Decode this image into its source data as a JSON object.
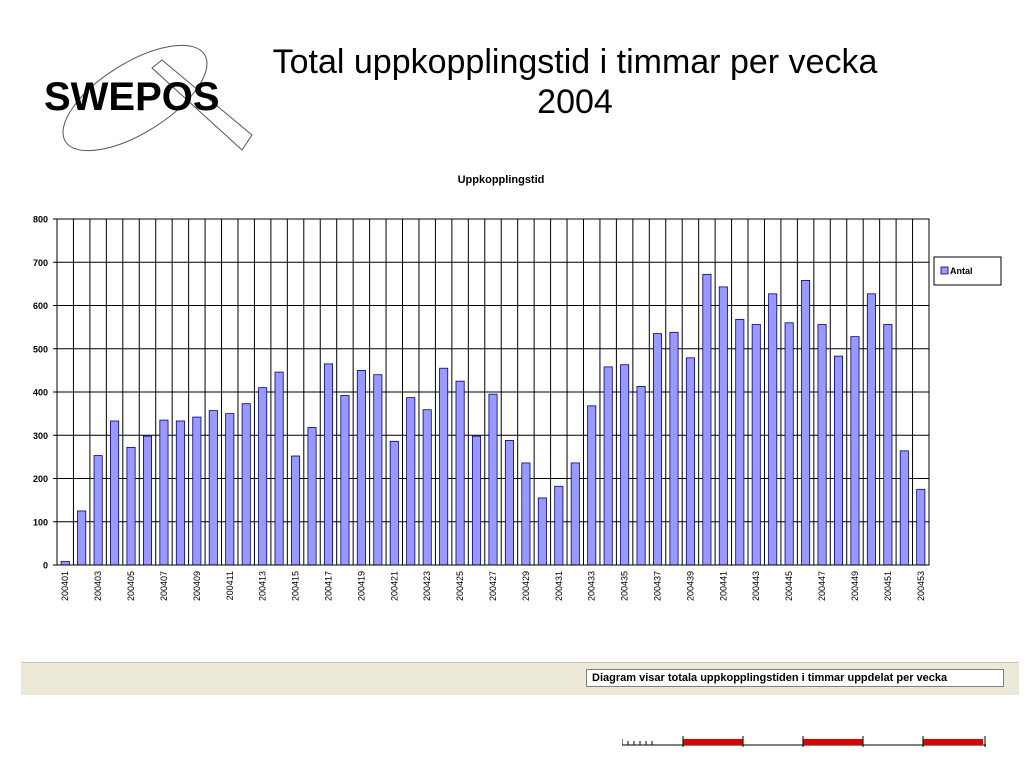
{
  "slide": {
    "title_line1": "Total uppkopplingstid i timmar per vecka",
    "title_line2": "2004"
  },
  "logo": {
    "text": "SWEPOS"
  },
  "status_caption": "Diagram visar totala uppkopplingstiden i timmar uppdelat per vecka",
  "colors": {
    "bar_fill": "#9999ff",
    "bar_stroke": "#000080",
    "grid": "#000000",
    "status_bg": "#ece9d8",
    "strip_red": "#dd0000"
  },
  "chart_data": {
    "type": "bar",
    "title": "Uppkopplingstid",
    "xlabel": "",
    "ylabel": "",
    "ylim": [
      0,
      800
    ],
    "yticks": [
      0,
      100,
      200,
      300,
      400,
      500,
      600,
      700,
      800
    ],
    "grid": true,
    "legend": {
      "position": "right",
      "entries": [
        "Antal"
      ]
    },
    "categories": [
      "200401",
      "200402",
      "200403",
      "200404",
      "200405",
      "200406",
      "200407",
      "200408",
      "200409",
      "200410",
      "200411",
      "200412",
      "200413",
      "200414",
      "200415",
      "200416",
      "200417",
      "200418",
      "200419",
      "200420",
      "200421",
      "200422",
      "200423",
      "200424",
      "200425",
      "200426",
      "200427",
      "200428",
      "200429",
      "200430",
      "200431",
      "200432",
      "200433",
      "200434",
      "200435",
      "200436",
      "200437",
      "200438",
      "200439",
      "200440",
      "200441",
      "200442",
      "200443",
      "200444",
      "200445",
      "200446",
      "200447",
      "200448",
      "200449",
      "200450",
      "200451",
      "200452",
      "200453"
    ],
    "tick_labels": [
      "200401",
      "200403",
      "200405",
      "200407",
      "200409",
      "200411",
      "200413",
      "200415",
      "200417",
      "200419",
      "200421",
      "200423",
      "200425",
      "200427",
      "200429",
      "200431",
      "200433",
      "200435",
      "200437",
      "200439",
      "200441",
      "200443",
      "200445",
      "200447",
      "200449",
      "200451",
      "200453"
    ],
    "series": [
      {
        "name": "Antal",
        "values": [
          8,
          125,
          253,
          333,
          272,
          298,
          335,
          333,
          342,
          357,
          350,
          373,
          410,
          446,
          252,
          318,
          465,
          392,
          450,
          440,
          286,
          387,
          359,
          455,
          425,
          298,
          395,
          288,
          236,
          155,
          182,
          236,
          368,
          458,
          463,
          413,
          535,
          538,
          479,
          672,
          643,
          568,
          556,
          627,
          560,
          658,
          556,
          483,
          528,
          627,
          556,
          264,
          175
        ]
      }
    ]
  }
}
